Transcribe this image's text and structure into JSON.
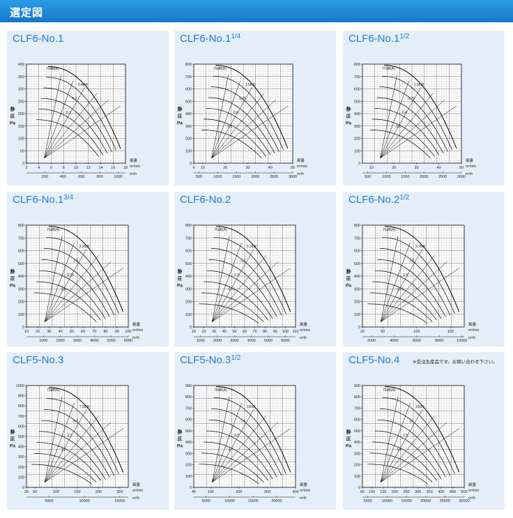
{
  "header": {
    "title": "選定図"
  },
  "axis_labels": {
    "y": [
      "静",
      "圧",
      "Pa"
    ],
    "x_top": "風量",
    "x_unit_top": "m³/min",
    "x_unit_bottom": "m³/h"
  },
  "chart_data": [
    {
      "type": "line",
      "title_base": "CLF6-No.1",
      "title_frac": "",
      "ylim": [
        0,
        400
      ],
      "yticks": [
        0,
        50,
        100,
        150,
        200,
        250,
        300,
        350,
        400
      ],
      "xlim": [
        2,
        18
      ],
      "xticks": [
        2,
        4,
        6,
        8,
        10,
        12,
        14,
        16,
        18
      ],
      "xlim_h": [
        0,
        1080
      ],
      "xticks_h": [
        200,
        400,
        600,
        800,
        1000
      ],
      "lead_label": "73dB(A)",
      "curve_labels": [
        "0.4kW",
        "0.2",
        "0.1"
      ],
      "curves": 6,
      "curve_top": 390
    },
    {
      "type": "line",
      "title_base": "CLF6-No.1",
      "title_frac": "1/4",
      "ylim": [
        0,
        800
      ],
      "yticks": [
        0,
        100,
        200,
        300,
        400,
        500,
        600,
        700,
        800
      ],
      "xlim": [
        6,
        50
      ],
      "xticks": [
        6,
        10,
        20,
        30,
        40,
        50
      ],
      "xlim_h": [
        360,
        3000
      ],
      "xticks_h": [
        500,
        1000,
        1500,
        2000,
        2500,
        3000
      ],
      "lead_label": "79dB(A)",
      "curve_labels": [
        "1.5kW",
        "0.75",
        "0.4",
        "0.2"
      ],
      "curves": 7,
      "curve_top": 790
    },
    {
      "type": "line",
      "title_base": "CLF6-No.1",
      "title_frac": "1/2",
      "ylim": [
        0,
        800
      ],
      "yticks": [
        0,
        100,
        200,
        300,
        400,
        500,
        600,
        700,
        800
      ],
      "xlim": [
        6,
        50
      ],
      "xticks": [
        10,
        20,
        30,
        40,
        50
      ],
      "xlim_h": [
        360,
        3000
      ],
      "xticks_h": [
        500,
        1000,
        1500,
        2000,
        2500,
        3000
      ],
      "lead_label": "77dB(A)",
      "curve_labels": [
        "1.5kW",
        "0.75",
        "0.4",
        "0.2"
      ],
      "curves": 7,
      "curve_top": 790
    },
    {
      "type": "line",
      "title_base": "CLF6-No.1",
      "title_frac": "3/4",
      "ylim": [
        0,
        800
      ],
      "yticks": [
        0,
        100,
        200,
        300,
        400,
        500,
        600,
        700,
        800
      ],
      "xlim": [
        10,
        100
      ],
      "xticks": [
        10,
        20,
        30,
        40,
        50,
        60,
        70,
        80,
        90,
        100
      ],
      "xlim_h": [
        0,
        6000
      ],
      "xticks_h": [
        1000,
        2000,
        3000,
        4000,
        5000,
        6000
      ],
      "lead_label": "79dB(A)",
      "curve_labels": [
        "2.2kW",
        "1.5",
        "0.75",
        "0.4"
      ],
      "curves": 7,
      "curve_top": 790
    },
    {
      "type": "line",
      "title_base": "CLF6-No.2",
      "title_frac": "",
      "ylim": [
        0,
        800
      ],
      "yticks": [
        0,
        100,
        200,
        300,
        400,
        500,
        600,
        700,
        800
      ],
      "xlim": [
        10,
        110
      ],
      "xticks": [
        10,
        20,
        30,
        40,
        50,
        60,
        70,
        80,
        90,
        100,
        110
      ],
      "xlim_h": [
        600,
        6600
      ],
      "xticks_h": [
        1000,
        2000,
        3000,
        4000,
        5000,
        6000
      ],
      "lead_label": "76dB(A)",
      "curve_labels": [
        "3.7kW",
        "2.2",
        "1.5",
        "0.75"
      ],
      "curves": 8,
      "curve_top": 790
    },
    {
      "type": "line",
      "title_base": "CLF6-No.2",
      "title_frac": "1/2",
      "ylim": [
        0,
        800
      ],
      "yticks": [
        0,
        100,
        200,
        300,
        400,
        500,
        600,
        700,
        800
      ],
      "xlim": [
        20,
        170
      ],
      "xticks": [
        20,
        50,
        100,
        150
      ],
      "xlim_h": [
        1200,
        10200
      ],
      "xticks_h": [
        2000,
        4000,
        6000,
        8000,
        10000
      ],
      "lead_label": "75dB(A)",
      "curve_labels": [
        "3.7kW",
        "2.2",
        "1.5",
        "0.75"
      ],
      "curves": 8,
      "curve_top": 790
    },
    {
      "type": "line",
      "title_base": "CLF5-No.3",
      "title_frac": "",
      "ylim": [
        0,
        1000
      ],
      "yticks": [
        0,
        100,
        200,
        300,
        400,
        500,
        600,
        700,
        800,
        900,
        1000
      ],
      "xlim": [
        30,
        270
      ],
      "xticks": [
        30,
        50,
        100,
        150,
        200,
        250
      ],
      "xlim_h": [
        1800,
        16200
      ],
      "xticks_h": [
        5000,
        10000,
        15000
      ],
      "lead_label": "73dB(A)",
      "curve_labels": [
        "7.5kW",
        "5.5",
        "3.7",
        "2.2"
      ],
      "curves": 8,
      "curve_top": 980
    },
    {
      "type": "line",
      "title_base": "CLF5-No.3",
      "title_frac": "1/2",
      "ylim": [
        0,
        900
      ],
      "yticks": [
        0,
        100,
        200,
        300,
        400,
        500,
        600,
        700,
        800,
        900
      ],
      "xlim": [
        40,
        400
      ],
      "xticks": [
        40,
        100,
        200,
        300,
        400
      ],
      "xlim_h": [
        2400,
        24000
      ],
      "xticks_h": [
        5000,
        10000,
        15000,
        20000
      ],
      "lead_label": "78dB(A)",
      "curve_labels": [
        "11kW",
        "7.5",
        "5.5",
        "3.7"
      ],
      "curves": 8,
      "curve_top": 890
    },
    {
      "type": "line",
      "title_base": "CLF5-No.4",
      "title_frac": "",
      "note": "※受注生産品です。お問い合わせ下さい。",
      "ylim": [
        0,
        900
      ],
      "yticks": [
        0,
        100,
        200,
        300,
        400,
        500,
        600,
        700,
        800,
        900
      ],
      "xlim": [
        60,
        500
      ],
      "xticks": [
        60,
        100,
        150,
        200,
        250,
        300,
        350,
        400,
        450,
        500
      ],
      "xlim_h": [
        3600,
        30000
      ],
      "xticks_h": [
        5000,
        10000,
        15000,
        20000,
        25000,
        30000
      ],
      "lead_label": "78dB(A)",
      "curve_labels": [
        "15kW",
        "11",
        "7.5",
        "5.5"
      ],
      "curves": 8,
      "curve_top": 890
    }
  ]
}
